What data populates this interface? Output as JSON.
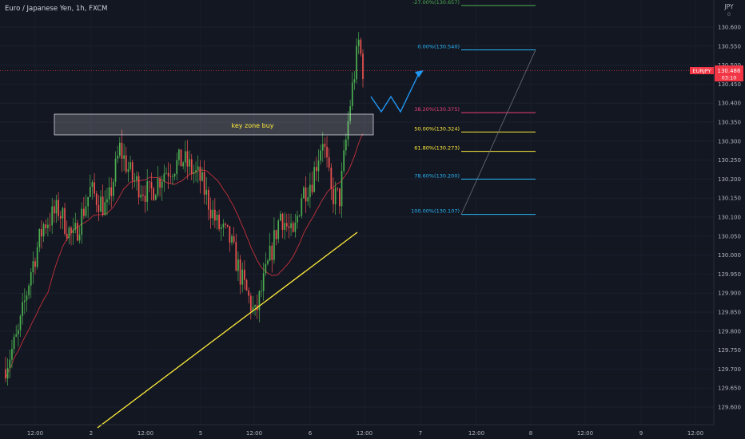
{
  "header": {
    "symbol_title": "Euro / Japanese Yen, 1h, FXCM",
    "currency": "JPY"
  },
  "price_badge": {
    "symbol": "EURJPY",
    "price": "130.486",
    "countdown": "03:10",
    "color": "#f23645"
  },
  "annotation": {
    "zone_label": "key zone buy"
  },
  "colors": {
    "background": "#131722",
    "bull": "#4caf50",
    "bear": "#ef5350",
    "ma": "#c2313b",
    "trendline": "#ffeb3b",
    "projection": "#2196f3"
  },
  "chart_data": {
    "type": "candlestick",
    "title": "Euro / Japanese Yen, 1h, FXCM",
    "ylim": [
      129.565,
      130.705
    ],
    "y_ticks": [
      "130.600",
      "130.550",
      "130.500",
      "130.450",
      "130.400",
      "130.350",
      "130.300",
      "130.250",
      "130.200",
      "130.150",
      "130.100",
      "130.050",
      "130.000",
      "129.950",
      "129.900",
      "129.850",
      "129.800",
      "129.750",
      "129.700",
      "129.650",
      "129.600"
    ],
    "x_ticks": [
      "12:00",
      "2",
      "12:00",
      "5",
      "12:00",
      "6",
      "12:00",
      "7",
      "12:00",
      "8",
      "12:00",
      "9",
      "12:00"
    ],
    "fib_levels": [
      {
        "label": "-27.00%(130.657)",
        "value": 130.657,
        "color": "#4caf50"
      },
      {
        "label": "0.00%(130.540)",
        "value": 130.54,
        "color": "#29b6f6"
      },
      {
        "label": "38.20%(130.375)",
        "value": 130.375,
        "color": "#ec407a"
      },
      {
        "label": "50.00%(130.324)",
        "value": 130.324,
        "color": "#ffeb3b"
      },
      {
        "label": "61.80%(130.273)",
        "value": 130.273,
        "color": "#ffeb3b"
      },
      {
        "label": "78.60%(130.200)",
        "value": 130.2,
        "color": "#29b6f6"
      },
      {
        "label": "100.00%(130.107)",
        "value": 130.107,
        "color": "#29b6f6"
      }
    ],
    "key_zone": [
      130.315,
      130.37
    ],
    "last_price": 130.486
  }
}
